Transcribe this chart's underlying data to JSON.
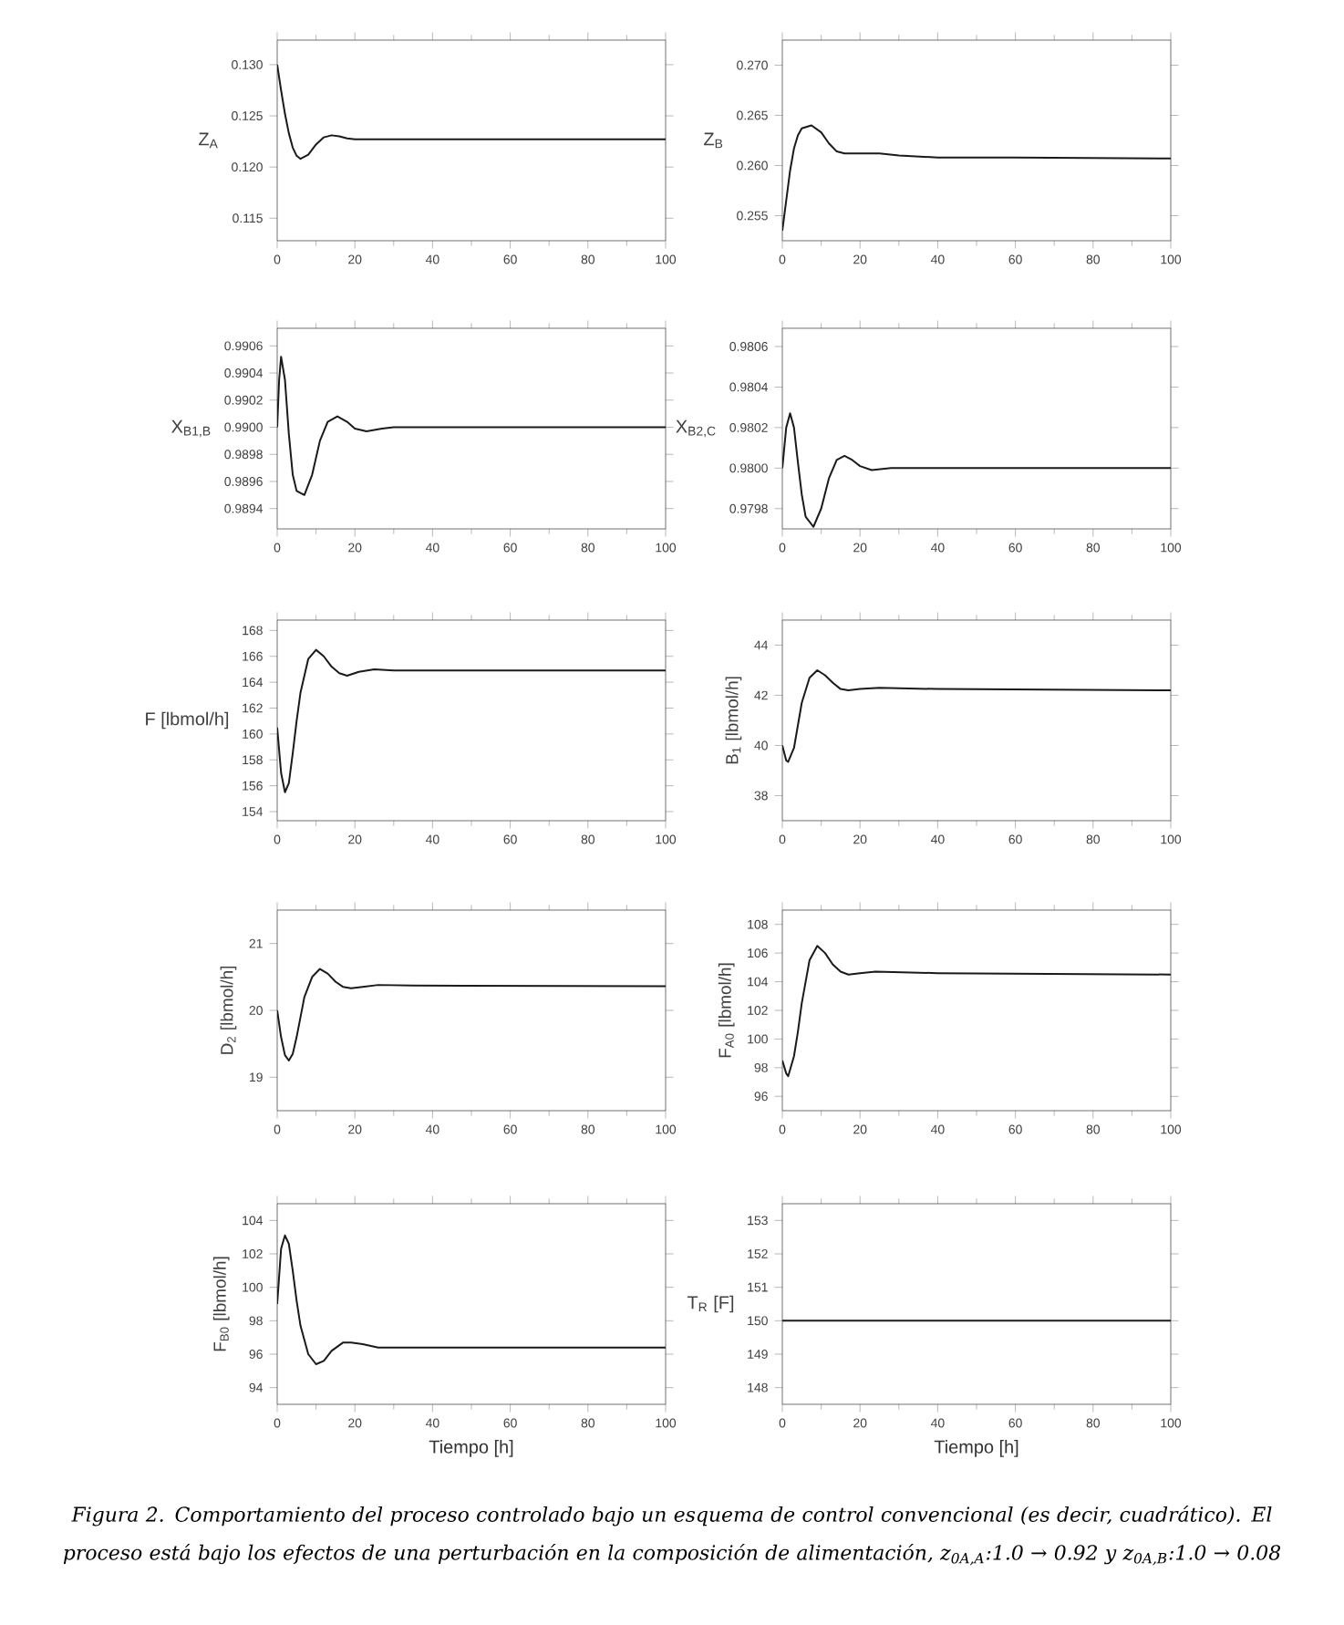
{
  "chart_data": [
    {
      "type": "line",
      "ylabel": "Z$_{A}$",
      "x": [
        0,
        1,
        2,
        3,
        4,
        5,
        6,
        8,
        10,
        12,
        14,
        16,
        18,
        20,
        25,
        100
      ],
      "values": [
        0.13,
        0.1275,
        0.1252,
        0.1233,
        0.1219,
        0.1211,
        0.1208,
        0.1212,
        0.1222,
        0.1229,
        0.1231,
        0.123,
        0.1228,
        0.1227,
        0.1227,
        0.1227
      ],
      "color": "#1a1a1a",
      "xlim": [
        0,
        100
      ],
      "xticks": [
        0,
        20,
        40,
        60,
        80,
        100
      ],
      "ylim": [
        0.1128,
        0.1324
      ],
      "yticks": [
        {
          "value": 0.115,
          "label": "0.115"
        },
        {
          "value": 0.12,
          "label": "0.120"
        },
        {
          "value": 0.125,
          "label": "0.125"
        },
        {
          "value": 0.13,
          "label": "0.130"
        }
      ]
    },
    {
      "type": "line",
      "ylabel": "Z$_{B}$",
      "x": [
        0,
        1,
        2,
        3,
        4,
        5,
        7.5,
        10,
        12,
        14,
        16,
        20,
        25,
        30,
        40,
        60,
        100
      ],
      "values": [
        0.2535,
        0.2565,
        0.2595,
        0.2617,
        0.263,
        0.2637,
        0.264,
        0.2633,
        0.2622,
        0.2614,
        0.2612,
        0.2612,
        0.2612,
        0.261,
        0.2608,
        0.2608,
        0.2607
      ],
      "color": "#1a1a1a",
      "xlim": [
        0,
        100
      ],
      "xticks": [
        0,
        20,
        40,
        60,
        80,
        100
      ],
      "ylim": [
        0.2525,
        0.2725
      ],
      "yticks": [
        {
          "value": 0.255,
          "label": "0.255"
        },
        {
          "value": 0.26,
          "label": "0.260"
        },
        {
          "value": 0.265,
          "label": "0.265"
        },
        {
          "value": 0.27,
          "label": "0.270"
        }
      ]
    },
    {
      "type": "line",
      "ylabel": "X$_{B1,B}$",
      "x": [
        0,
        0.5,
        1,
        2,
        3,
        4,
        5,
        7,
        9,
        11,
        13,
        15.5,
        18,
        20,
        23,
        27,
        30,
        100
      ],
      "values": [
        0.99,
        0.99035,
        0.99052,
        0.99035,
        0.98995,
        0.98965,
        0.98953,
        0.9895,
        0.98965,
        0.9899,
        0.99004,
        0.99008,
        0.99004,
        0.98999,
        0.98997,
        0.98999,
        0.99,
        0.99
      ],
      "color": "#1a1a1a",
      "xlim": [
        0,
        100
      ],
      "xticks": [
        0,
        20,
        40,
        60,
        80,
        100
      ],
      "ylim": [
        0.98925,
        0.99073
      ],
      "yticks": [
        {
          "value": 0.9894,
          "label": "0.9894"
        },
        {
          "value": 0.9896,
          "label": "0.9896"
        },
        {
          "value": 0.9898,
          "label": "0.9898"
        },
        {
          "value": 0.99,
          "label": "0.9900"
        },
        {
          "value": 0.9902,
          "label": "0.9902"
        },
        {
          "value": 0.9904,
          "label": "0.9904"
        },
        {
          "value": 0.9906,
          "label": "0.9906"
        }
      ]
    },
    {
      "type": "line",
      "ylabel": "X$_{B2,C}$",
      "x": [
        0,
        1,
        2,
        3,
        4,
        5,
        6,
        8,
        10,
        12,
        14,
        16,
        18,
        20,
        23,
        28,
        100
      ],
      "values": [
        0.98,
        0.9802,
        0.98027,
        0.9802,
        0.98003,
        0.97987,
        0.97976,
        0.97971,
        0.9798,
        0.97995,
        0.98004,
        0.98006,
        0.98004,
        0.98001,
        0.97999,
        0.98,
        0.98
      ],
      "color": "#1a1a1a",
      "xlim": [
        0,
        100
      ],
      "xticks": [
        0,
        20,
        40,
        60,
        80,
        100
      ],
      "ylim": [
        0.9797,
        0.98069
      ],
      "yticks": [
        {
          "value": 0.9798,
          "label": "0.9798"
        },
        {
          "value": 0.98,
          "label": "0.9800"
        },
        {
          "value": 0.9802,
          "label": "0.9802"
        },
        {
          "value": 0.9804,
          "label": "0.9804"
        },
        {
          "value": 0.9806,
          "label": "0.9806"
        }
      ]
    },
    {
      "type": "line",
      "ylabel": "F [lbmol/h]",
      "x": [
        0,
        1,
        2,
        3,
        4,
        5,
        6,
        8,
        10,
        12,
        14,
        16,
        18,
        21,
        25,
        30,
        100
      ],
      "values": [
        160.5,
        157,
        155.5,
        156.2,
        158.5,
        161,
        163.2,
        165.8,
        166.5,
        166,
        165.2,
        164.7,
        164.5,
        164.8,
        165.0,
        164.9,
        164.9
      ],
      "color": "#1a1a1a",
      "xlim": [
        0,
        100
      ],
      "xticks": [
        0,
        20,
        40,
        60,
        80,
        100
      ],
      "ylim": [
        153.3,
        168.8
      ],
      "yticks": [
        154,
        156,
        158,
        160,
        162,
        164,
        166,
        168
      ]
    },
    {
      "type": "line",
      "ylabel": "B$_{1}$ [lbmol/h]",
      "x": [
        0,
        1,
        1.5,
        3,
        4,
        5,
        7,
        9,
        11,
        13,
        15,
        17,
        20,
        25,
        40,
        100
      ],
      "values": [
        40.0,
        39.4,
        39.35,
        39.9,
        40.8,
        41.7,
        42.7,
        43.0,
        42.8,
        42.5,
        42.25,
        42.2,
        42.25,
        42.3,
        42.25,
        42.2
      ],
      "color": "#1a1a1a",
      "xlim": [
        0,
        100
      ],
      "xticks": [
        0,
        20,
        40,
        60,
        80,
        100
      ],
      "ylim": [
        37,
        45
      ],
      "yticks": [
        38,
        40,
        42,
        44
      ]
    },
    {
      "type": "line",
      "ylabel": "D$_{2}$ [lbmol/h]",
      "x": [
        0,
        1,
        2,
        3,
        4,
        5,
        6,
        7,
        9,
        11,
        13,
        15,
        17,
        19,
        22,
        26,
        35,
        100
      ],
      "values": [
        20.0,
        19.6,
        19.33,
        19.25,
        19.35,
        19.6,
        19.9,
        20.2,
        20.5,
        20.62,
        20.55,
        20.43,
        20.35,
        20.33,
        20.35,
        20.38,
        20.37,
        20.36
      ],
      "color": "#1a1a1a",
      "xlim": [
        0,
        100
      ],
      "xticks": [
        0,
        20,
        40,
        60,
        80,
        100
      ],
      "ylim": [
        18.5,
        21.5
      ],
      "yticks": [
        19,
        20,
        21
      ]
    },
    {
      "type": "line",
      "ylabel": "F$_{A0}$ [lbmol/h]",
      "x": [
        0,
        1,
        1.5,
        3,
        4,
        5,
        7,
        9,
        11,
        13,
        15,
        17,
        20,
        24,
        40,
        100
      ],
      "values": [
        98.5,
        97.6,
        97.4,
        98.8,
        100.5,
        102.5,
        105.5,
        106.5,
        106.0,
        105.2,
        104.7,
        104.5,
        104.6,
        104.7,
        104.6,
        104.5
      ],
      "color": "#1a1a1a",
      "xlim": [
        0,
        100
      ],
      "xticks": [
        0,
        20,
        40,
        60,
        80,
        100
      ],
      "ylim": [
        95,
        109
      ],
      "yticks": [
        96,
        98,
        100,
        102,
        104,
        106,
        108
      ]
    },
    {
      "type": "line",
      "ylabel": "F$_{B0}$ [lbmol/h]",
      "xlabel": "Tiempo [h]",
      "x": [
        0,
        1,
        2,
        3,
        4,
        5,
        6,
        8,
        10,
        12,
        14,
        17,
        19,
        22,
        26,
        100
      ],
      "values": [
        99,
        102.3,
        103.1,
        102.6,
        101,
        99.2,
        97.7,
        96,
        95.4,
        95.6,
        96.2,
        96.7,
        96.7,
        96.6,
        96.4,
        96.4
      ],
      "color": "#1a1a1a",
      "xlim": [
        0,
        100
      ],
      "xticks": [
        0,
        20,
        40,
        60,
        80,
        100
      ],
      "ylim": [
        93,
        105
      ],
      "yticks": [
        94,
        96,
        98,
        100,
        102,
        104
      ]
    },
    {
      "type": "line",
      "ylabel": "T$_{R}$ [F]",
      "xlabel": "Tiempo [h]",
      "x": [
        0,
        100
      ],
      "values": [
        150,
        150
      ],
      "color": "#1a1a1a",
      "xlim": [
        0,
        100
      ],
      "xticks": [
        0,
        20,
        40,
        60,
        80,
        100
      ],
      "ylim": [
        147.5,
        153.5
      ],
      "yticks": [
        148,
        149,
        150,
        151,
        152,
        153
      ],
      "annotations": [
        "Figura 2. Comportamiento del proceso controlado bajo un esquema de control convencional (es decir, cuadrático). El proceso está bajo los efectos de una perturbación en la composición de alimentación, z$_{0A,A}$:1.0 → 0.92 y z$_{0A,B}$:1.0 → 0.08"
      ]
    }
  ]
}
